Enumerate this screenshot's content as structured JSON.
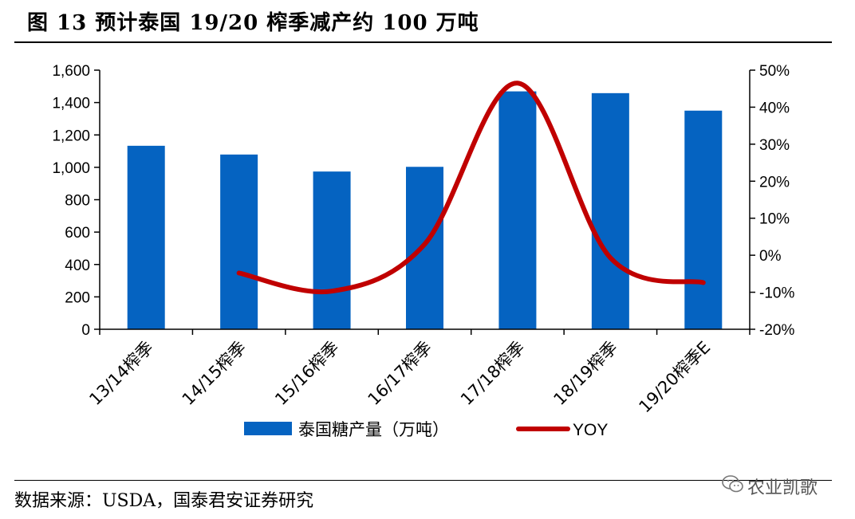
{
  "header": {
    "title": "图 13 预计泰国 19/20 榨季减产约 100 万吨"
  },
  "footer": {
    "source": "数据来源：USDA，国泰君安证券研究"
  },
  "watermark": {
    "text": "农业凯歌",
    "icon": "wechat-icon"
  },
  "colors": {
    "bar": "#0563c1",
    "line": "#c00000",
    "axis": "#000000"
  },
  "chart_data": {
    "type": "bar",
    "categories": [
      "13/14榨季",
      "14/15榨季",
      "15/16榨季",
      "16/17榨季",
      "17/18榨季",
      "18/19榨季",
      "19/20榨季E"
    ],
    "series": [
      {
        "name": "泰国糖产量（万吨）",
        "type": "bar",
        "axis": "left",
        "values": [
          1133,
          1079,
          974,
          1003,
          1469,
          1458,
          1350
        ]
      },
      {
        "name": "YOY",
        "type": "line",
        "axis": "right",
        "values": [
          null,
          -4.8,
          -9.7,
          3.0,
          46.5,
          -0.7,
          -7.4
        ]
      }
    ],
    "y_left": {
      "ylim": [
        0,
        1600
      ],
      "ticks": [
        0,
        200,
        400,
        600,
        800,
        1000,
        1200,
        1400,
        1600
      ],
      "tick_labels": [
        "0",
        "200",
        "400",
        "600",
        "800",
        "1,000",
        "1,200",
        "1,400",
        "1,600"
      ]
    },
    "y_right": {
      "ylim": [
        -20,
        50
      ],
      "ticks": [
        -20,
        -10,
        0,
        10,
        20,
        30,
        40,
        50
      ],
      "tick_labels": [
        "-20%",
        "-10%",
        "0%",
        "10%",
        "20%",
        "30%",
        "40%",
        "50%"
      ]
    },
    "legend": {
      "position": "bottom"
    },
    "grid": false
  }
}
